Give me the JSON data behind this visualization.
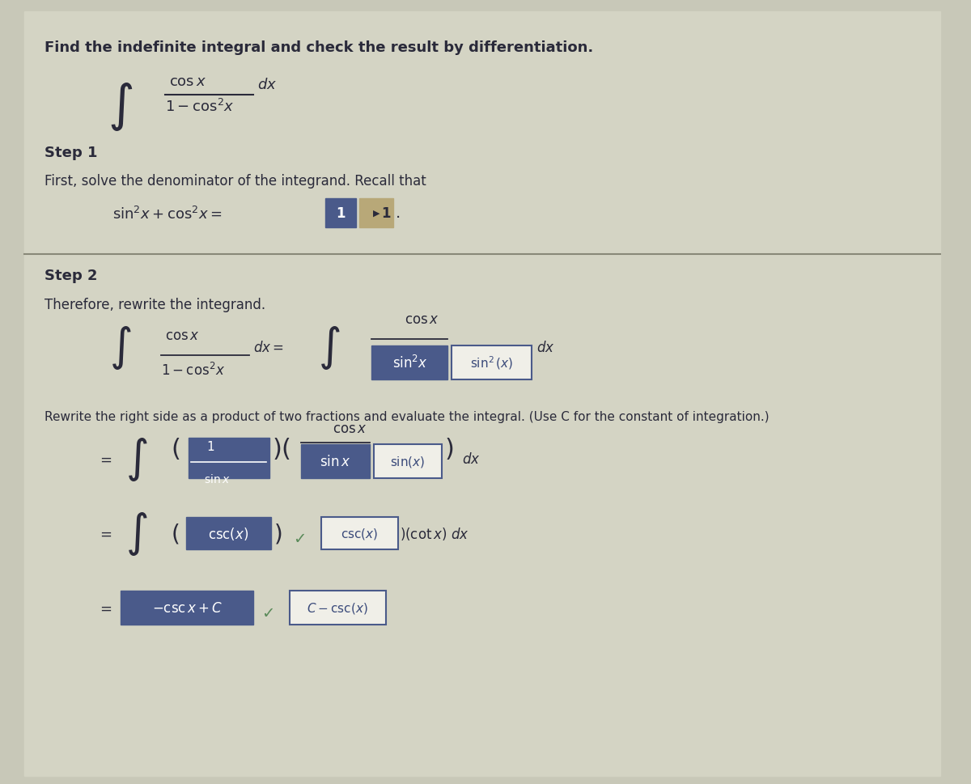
{
  "bg_color": "#c8c8b8",
  "panel_bg": "#d4d4c4",
  "white_bg": "#f0efe8",
  "title": "Find the indefinite integral and check the result by differentiation.",
  "step1_label": "Step 1",
  "step1_text": "First, solve the denominator of the integrand. Recall that",
  "step2_label": "Step 2",
  "step2_text": "Therefore, rewrite the integrand.",
  "rewrite_text": "Rewrite the right side as a product of two fractions and evaluate the integral. (Use C for the constant of integration.)",
  "box_blue_dark": "#4a5a8a",
  "box_blue_mid": "#6878a8",
  "box_tan": "#b8a878",
  "box_green_check": "#5a8a5a",
  "text_dark": "#2a2a3a",
  "text_blue": "#3a4a7a"
}
